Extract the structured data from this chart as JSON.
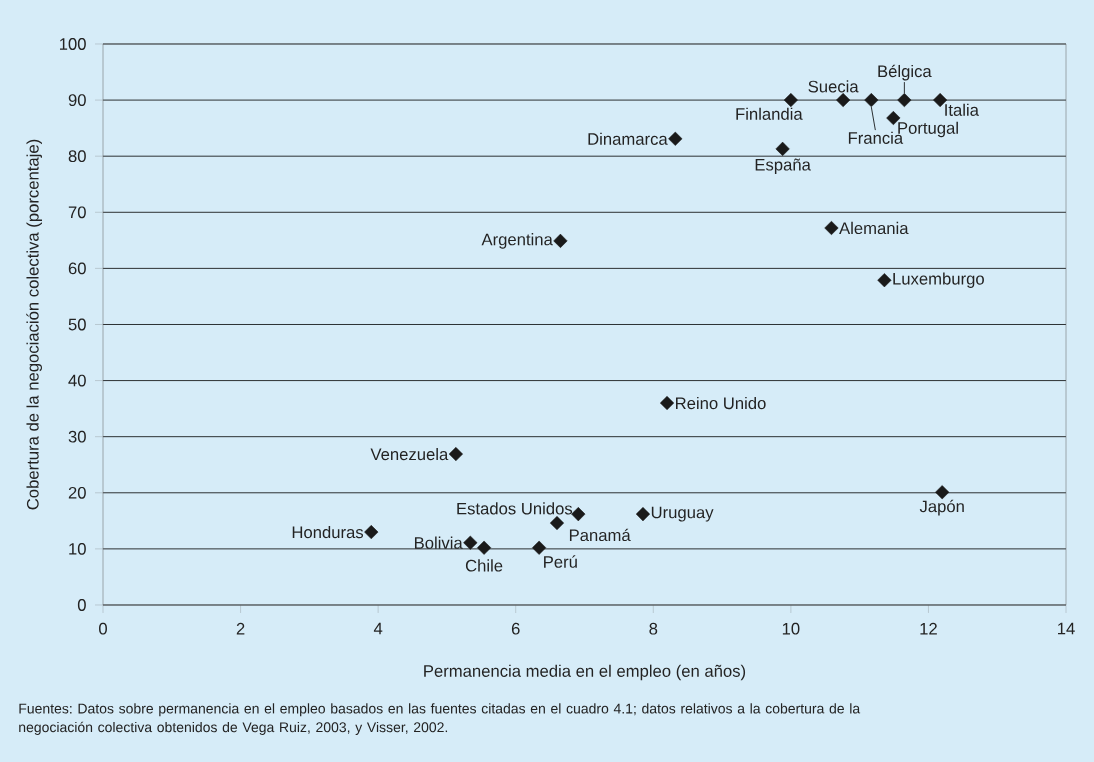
{
  "chart_data": {
    "type": "scatter",
    "xlabel": "Permanencia media en el empleo (en años)",
    "ylabel": "Cobertura de la negociación colectiva (porcentaje)",
    "x": [
      10.0,
      10.76,
      11.17,
      11.65,
      12.17,
      11.49,
      8.32,
      9.88,
      6.65,
      10.59,
      11.36,
      8.2,
      5.13,
      3.9,
      5.34,
      5.54,
      6.34,
      6.6,
      6.91,
      7.85,
      12.2
    ],
    "values": [
      90,
      90,
      90,
      90,
      90,
      86.8,
      83.1,
      81.3,
      64.9,
      67.2,
      57.9,
      36.0,
      26.9,
      13.0,
      11.1,
      10.2,
      10.2,
      14.6,
      16.2,
      16.2,
      20.1
    ],
    "color": "#1a1a1a",
    "marker": "diamond",
    "grid": "y",
    "xlim": [
      0,
      14
    ],
    "xticks": [
      0,
      2,
      4,
      6,
      8,
      10,
      12,
      14
    ],
    "ylim": [
      0,
      100
    ],
    "yticks": [
      0,
      10,
      20,
      30,
      40,
      50,
      60,
      70,
      80,
      90,
      100
    ],
    "annotations": [
      {
        "text": "Finlandia",
        "x": 10.0,
        "y": 90
      },
      {
        "text": "Suecia",
        "x": 10.76,
        "y": 90
      },
      {
        "text": "Francia",
        "x": 11.17,
        "y": 90
      },
      {
        "text": "Bélgica",
        "x": 11.65,
        "y": 90
      },
      {
        "text": "Italia",
        "x": 12.17,
        "y": 90
      },
      {
        "text": "Portugal",
        "x": 11.49,
        "y": 86.8
      },
      {
        "text": "Dinamarca",
        "x": 8.32,
        "y": 83.1
      },
      {
        "text": "España",
        "x": 9.88,
        "y": 81.3
      },
      {
        "text": "Argentina",
        "x": 6.65,
        "y": 64.9
      },
      {
        "text": "Alemania",
        "x": 10.59,
        "y": 67.2
      },
      {
        "text": "Luxemburgo",
        "x": 11.36,
        "y": 57.9
      },
      {
        "text": "Reino Unido",
        "x": 8.2,
        "y": 36.0
      },
      {
        "text": "Venezuela",
        "x": 5.13,
        "y": 26.9
      },
      {
        "text": "Honduras",
        "x": 3.9,
        "y": 13.0
      },
      {
        "text": "Bolivia",
        "x": 5.34,
        "y": 11.1
      },
      {
        "text": "Chile",
        "x": 5.54,
        "y": 10.2
      },
      {
        "text": "Perú",
        "x": 6.34,
        "y": 10.2
      },
      {
        "text": "Panamá",
        "x": 6.6,
        "y": 14.6
      },
      {
        "text": "Estados Unidos",
        "x": 6.91,
        "y": 16.2
      },
      {
        "text": "Uruguay",
        "x": 7.85,
        "y": 16.2
      },
      {
        "text": "Japón",
        "x": 12.2,
        "y": 20.1
      },
      "Fuentes: Datos sobre permanencia en el empleo basados en las fuentes citadas en el cuadro 4.1; datos relativos a la cobertura de la negociación colectiva obtenidos de Vega Ruiz, 2003, y Visser, 2002."
    ]
  }
}
